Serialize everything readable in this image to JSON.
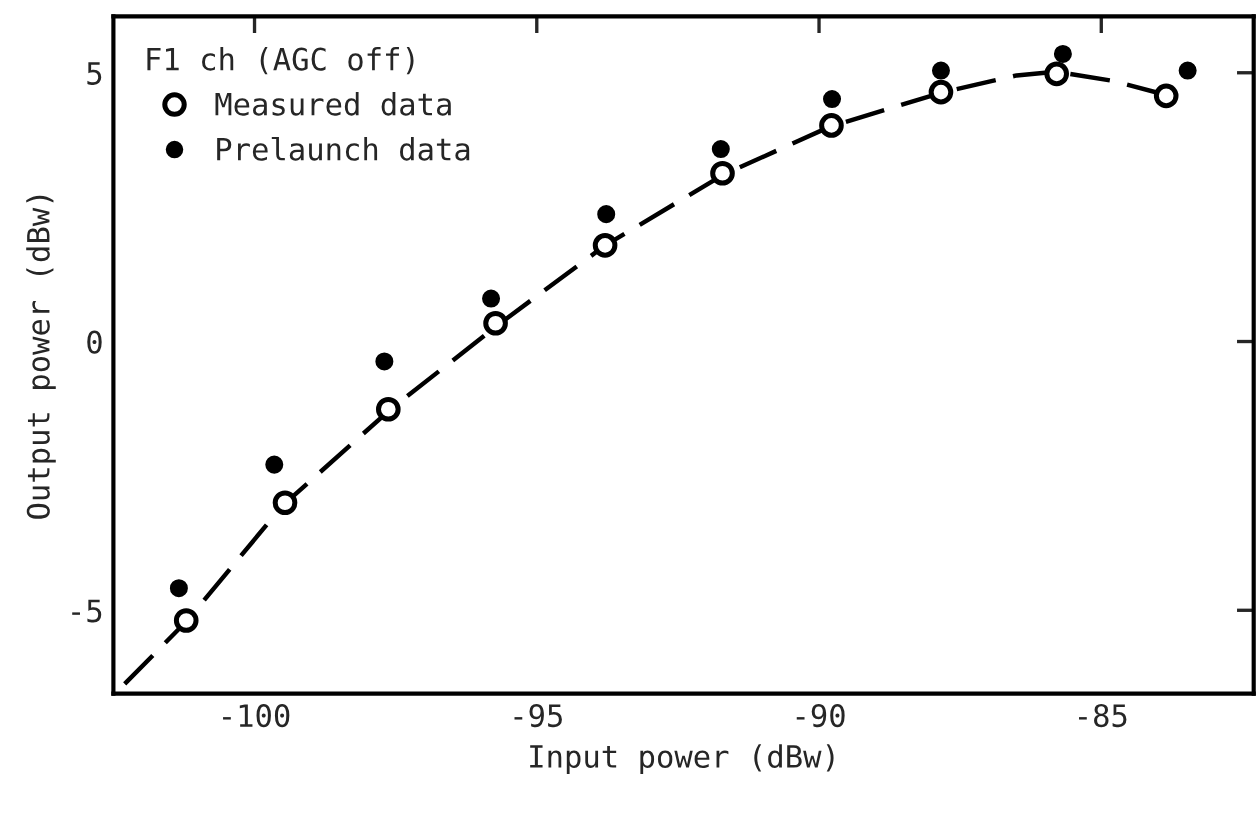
{
  "chart_data": {
    "type": "scatter",
    "xlabel": "Input power (dBw)",
    "ylabel": "Output power (dBw)",
    "legend_title": "F1 ch (AGC off)",
    "xlim": [
      -102.5,
      -82.3
    ],
    "ylim": [
      -6.55,
      6.05
    ],
    "xticks": [
      -100,
      -95,
      -90,
      -85
    ],
    "yticks": [
      -5,
      0,
      5
    ],
    "legend": "top left",
    "marker": "circle",
    "series": [
      {
        "name": "Measured data",
        "color": "#000000",
        "x": [
          -101.21,
          -99.46,
          -97.63,
          -95.73,
          -93.79,
          -91.71,
          -89.78,
          -87.84,
          -85.79,
          -83.85
        ],
        "values": [
          -5.19,
          -3.0,
          -1.26,
          0.34,
          1.79,
          3.13,
          4.02,
          4.64,
          4.98,
          4.57
        ]
      },
      {
        "name": "Prelaunch data",
        "color": "#000000",
        "x": [
          -101.34,
          -99.65,
          -97.7,
          -95.81,
          -93.77,
          -91.74,
          -89.77,
          -87.84,
          -85.68,
          -83.47
        ],
        "values": [
          -4.59,
          -2.29,
          -0.37,
          0.8,
          2.37,
          3.58,
          4.51,
          5.04,
          5.35,
          5.04
        ]
      },
      {
        "type": "line",
        "line_style": "dashed",
        "marker": "none",
        "color": "#000000",
        "x": [
          -102.3,
          -101.2,
          -99.5,
          -97.6,
          -95.7,
          -93.8,
          -91.7,
          -89.8,
          -87.8,
          -86.5,
          -85.8,
          -84.8,
          -83.9
        ],
        "values": [
          -6.37,
          -5.2,
          -3.05,
          -1.27,
          0.3,
          1.78,
          3.1,
          4.0,
          4.64,
          4.95,
          5.02,
          4.85,
          4.6
        ]
      }
    ]
  }
}
